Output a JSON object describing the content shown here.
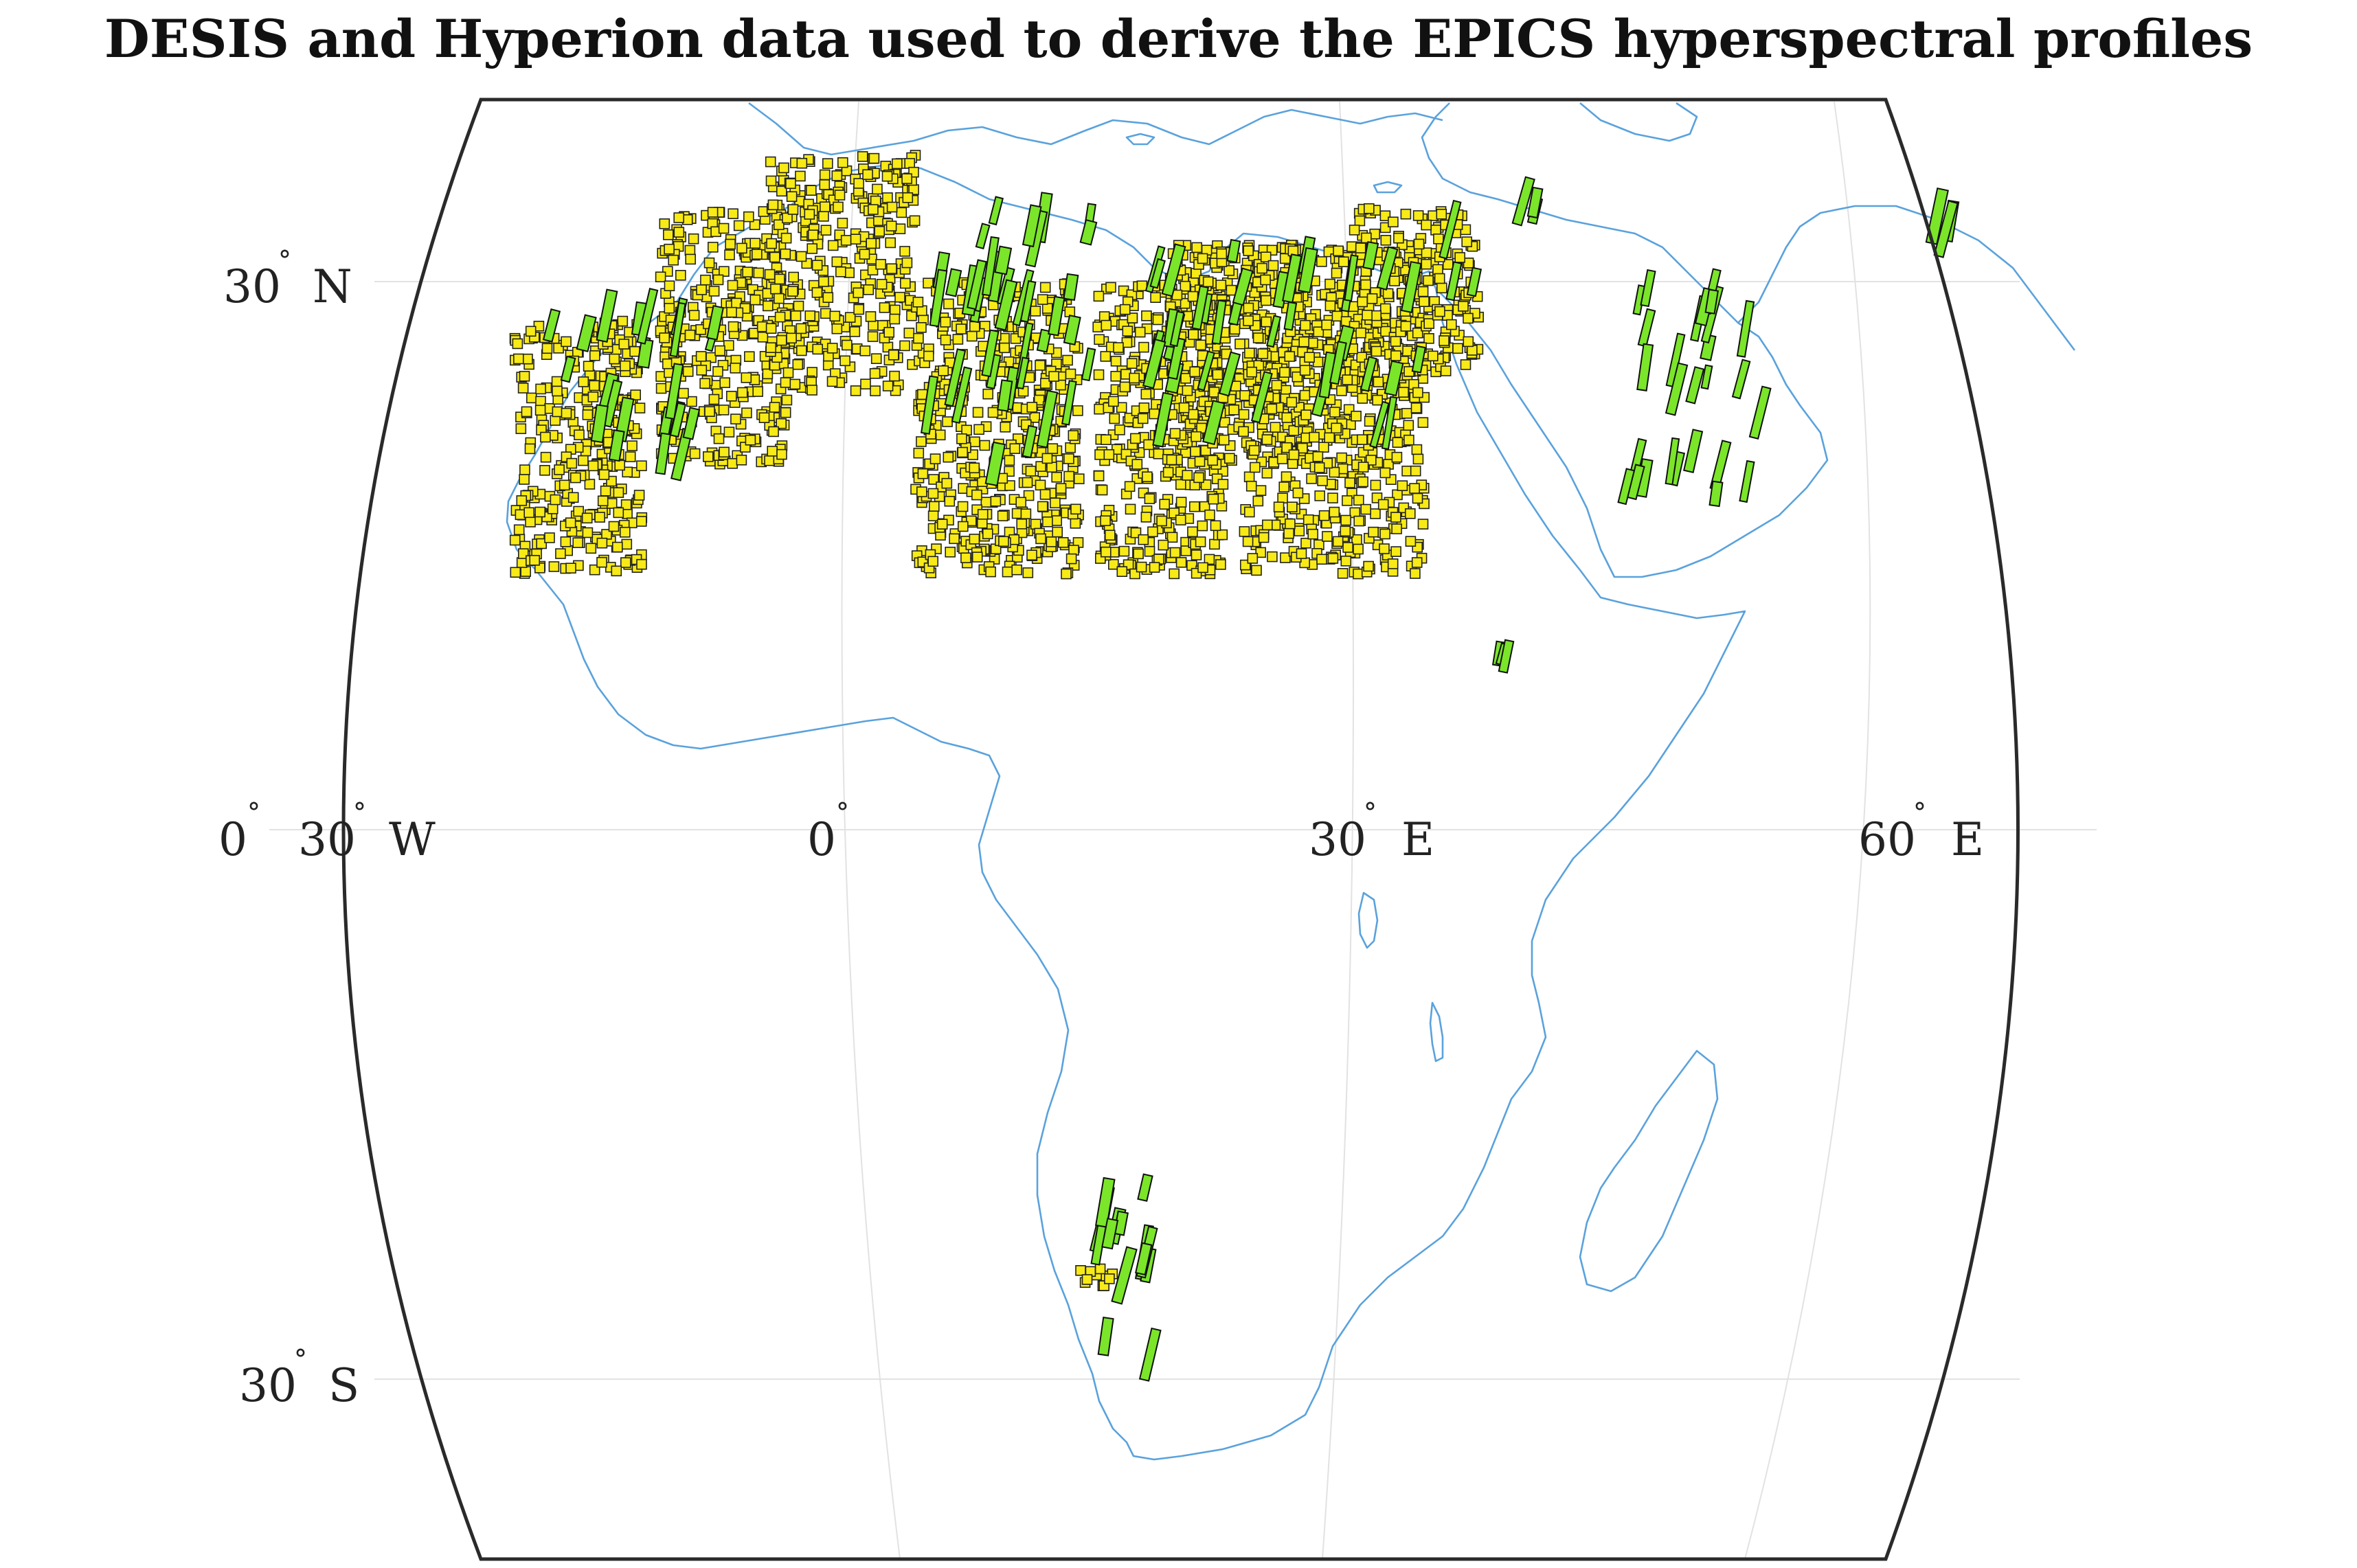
{
  "title": "DESIS and Hyperion data used to derive the EPICS hyperspectral profiles",
  "labels": {
    "lat_30n": {
      "num": "30",
      "deg": "°",
      "hemi": "N"
    },
    "lat_30s": {
      "num": "30",
      "deg": "°",
      "hemi": "S"
    },
    "lon_0_left": {
      "num": "0",
      "deg": "°",
      "hemi": ""
    },
    "lon_30w": {
      "num": "30",
      "deg": "°",
      "hemi": "W"
    },
    "lon_0": {
      "num": "0",
      "deg": "°",
      "hemi": ""
    },
    "lon_30e": {
      "num": "30",
      "deg": "°",
      "hemi": "E"
    },
    "lon_60e": {
      "num": "60",
      "deg": "°",
      "hemi": "E"
    }
  },
  "colors": {
    "coastline": "#5aa2dc",
    "hyperion_fill": "#f7ea16",
    "desis_fill": "#7be52a",
    "graticule": "#e2e2e2",
    "frame": "#2a2a2a"
  },
  "map": {
    "projection": "pseudocylindrical",
    "lon_range": [
      -30,
      70
    ],
    "lat_range": [
      -40,
      40
    ]
  },
  "chart_data": {
    "type": "scatter",
    "title": "DESIS and Hyperion data used to derive the EPICS hyperspectral profiles",
    "series": [
      {
        "color": "#f7ea16",
        "footprint": "small square",
        "clusters": [
          {
            "lon": [
              -17,
              -10
            ],
            "lat": [
              14,
              28
            ]
          },
          {
            "lon": [
              -9,
              -2
            ],
            "lat": [
              20,
              34
            ]
          },
          {
            "lon": [
              -3,
              5
            ],
            "lat": [
              24,
              37
            ]
          },
          {
            "lon": [
              5,
              14
            ],
            "lat": [
              14,
              30
            ]
          },
          {
            "lon": [
              15,
              22
            ],
            "lat": [
              14,
              30
            ]
          },
          {
            "lon": [
              19,
              27
            ],
            "lat": [
              20,
              32
            ]
          },
          {
            "lon": [
              23,
              33
            ],
            "lat": [
              14,
              32
            ]
          },
          {
            "lon": [
              29,
              36
            ],
            "lat": [
              25,
              34
            ]
          },
          {
            "lon": [
              14,
              16
            ],
            "lat": [
              -25,
              -24
            ]
          }
        ]
      },
      {
        "color": "#7be52a",
        "footprint": "elongated strip",
        "clusters": [
          {
            "lon": [
              -15,
              -6
            ],
            "lat": [
              20,
              30
            ]
          },
          {
            "lon": [
              5,
              15
            ],
            "lat": [
              20,
              34
            ]
          },
          {
            "lon": [
              18,
              33
            ],
            "lat": [
              22,
              32
            ]
          },
          {
            "lon": [
              34,
              36
            ],
            "lat": [
              28,
              34
            ]
          },
          {
            "lon": [
              38,
              40
            ],
            "lat": [
              33,
              36
            ]
          },
          {
            "lon": [
              44,
              52
            ],
            "lat": [
              18,
              30
            ]
          },
          {
            "lon": [
              58,
              62
            ],
            "lat": [
              32,
              34
            ]
          },
          {
            "lon": [
              37,
              38
            ],
            "lat": [
              9,
              10
            ]
          },
          {
            "lon": [
              14,
              19
            ],
            "lat": [
              -30,
              -19
            ]
          }
        ]
      }
    ]
  }
}
